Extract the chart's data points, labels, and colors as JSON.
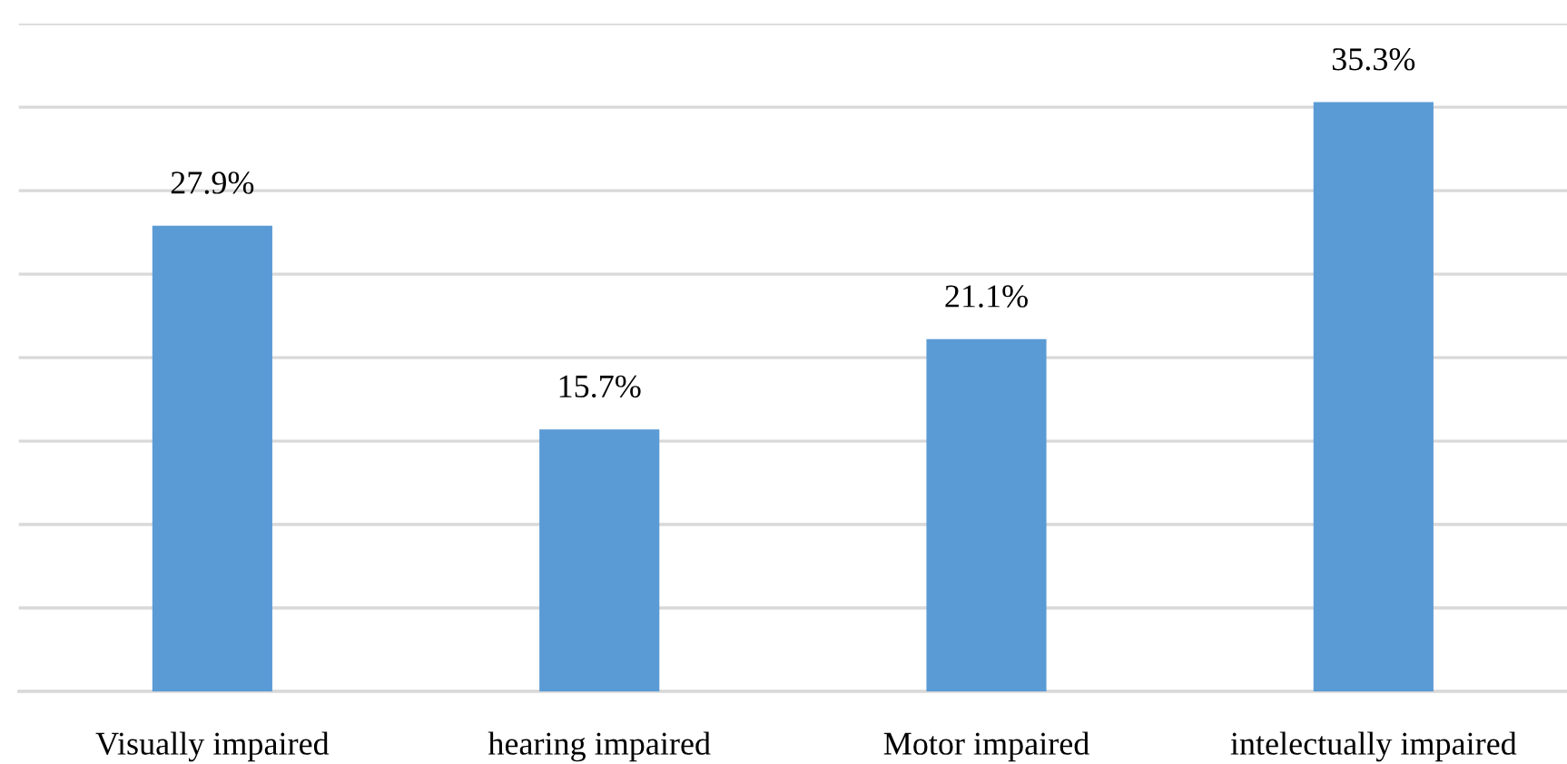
{
  "chart_data": {
    "type": "bar",
    "categories": [
      "Visually impaired",
      "hearing impaired",
      "Motor impaired",
      "intelectually impaired"
    ],
    "values": [
      27.9,
      15.7,
      21.1,
      35.3
    ],
    "value_labels": [
      "27.9%",
      "15.7%",
      "21.1%",
      "35.3%"
    ],
    "color": "#5b9bd5",
    "ylim": [
      0,
      40
    ],
    "yticks": [
      {
        "value": 0,
        "label": null
      },
      {
        "value": 5,
        "label": null
      },
      {
        "value": 10,
        "label": null
      },
      {
        "value": 15,
        "label": null
      },
      {
        "value": 20,
        "label": null
      },
      {
        "value": 25,
        "label": null
      },
      {
        "value": 30,
        "label": null
      },
      {
        "value": 35,
        "label": null
      },
      {
        "value": 40,
        "label": null
      }
    ],
    "grid": "y",
    "tick_labels": "x",
    "legend": false
  }
}
